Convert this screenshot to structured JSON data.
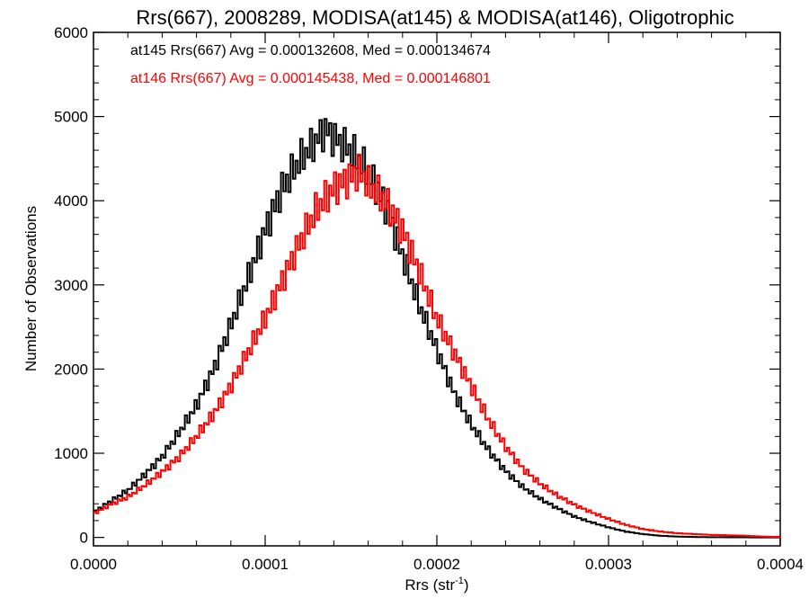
{
  "chart_data": {
    "type": "line",
    "title": "Rrs(667), 2008289, MODISA(at145) & MODISA(at146), Oligotrophic",
    "xlabel_main": "Rrs (str",
    "xlabel_sup": "-1",
    "xlabel_close": ")",
    "ylabel": "Number of Observations",
    "xlim": [
      0.0,
      0.0004
    ],
    "ylim": [
      -100,
      6000
    ],
    "x_ticks": [
      "0.0000",
      "0.0001",
      "0.0002",
      "0.0003",
      "0.0004"
    ],
    "y_ticks": [
      "0",
      "1000",
      "2000",
      "3000",
      "4000",
      "5000",
      "6000"
    ],
    "grid": false,
    "step": true,
    "annotations": [
      {
        "text": "at145 Rrs(667) Avg = 0.000132608, Med = 0.000134674",
        "color": "#000000"
      },
      {
        "text": "at146 Rrs(667) Avg = 0.000145438, Med = 0.000146801",
        "color": "#ff0000"
      }
    ],
    "series": [
      {
        "color": "#000000",
        "x": [
          0.0,
          1e-05,
          2e-05,
          3e-05,
          4e-05,
          5e-05,
          6e-05,
          7e-05,
          8e-05,
          9e-05,
          0.0001,
          0.00011,
          0.00012,
          0.00013,
          0.000135,
          0.00014,
          0.00015,
          0.00016,
          0.00017,
          0.00018,
          0.00019,
          0.0002,
          0.00021,
          0.00022,
          0.00023,
          0.00024,
          0.00025,
          0.00026,
          0.00027,
          0.00028,
          0.00029,
          0.0003,
          0.00031,
          0.00032,
          0.00033,
          0.00034,
          0.00035,
          0.00036,
          0.00037,
          0.00038,
          0.00039,
          0.0004
        ],
        "y": [
          300,
          430,
          560,
          750,
          960,
          1250,
          1570,
          2000,
          2520,
          3080,
          3650,
          4150,
          4480,
          4720,
          4850,
          4750,
          4600,
          4350,
          3950,
          3350,
          2750,
          2230,
          1720,
          1340,
          1040,
          790,
          600,
          460,
          350,
          250,
          180,
          120,
          70,
          40,
          20,
          10,
          5,
          3,
          2,
          1,
          0,
          0
        ]
      },
      {
        "color": "#ff0000",
        "x": [
          0.0,
          1e-05,
          2e-05,
          3e-05,
          4e-05,
          5e-05,
          6e-05,
          7e-05,
          8e-05,
          9e-05,
          0.0001,
          0.00011,
          0.00012,
          0.00013,
          0.00014,
          0.00015,
          0.000155,
          0.00016,
          0.00017,
          0.00018,
          0.00019,
          0.0002,
          0.00021,
          0.00022,
          0.00023,
          0.00024,
          0.00025,
          0.00026,
          0.00027,
          0.00028,
          0.00029,
          0.0003,
          0.00031,
          0.00032,
          0.00033,
          0.00034,
          0.00035,
          0.00036,
          0.00037,
          0.00038,
          0.00039,
          0.0004
        ],
        "y": [
          280,
          390,
          480,
          620,
          780,
          960,
          1200,
          1470,
          1800,
          2200,
          2600,
          3050,
          3500,
          3900,
          4150,
          4280,
          4350,
          4200,
          4000,
          3650,
          3150,
          2600,
          2200,
          1800,
          1400,
          1080,
          820,
          640,
          500,
          390,
          300,
          220,
          150,
          100,
          70,
          50,
          40,
          30,
          25,
          20,
          10,
          5
        ]
      }
    ]
  }
}
